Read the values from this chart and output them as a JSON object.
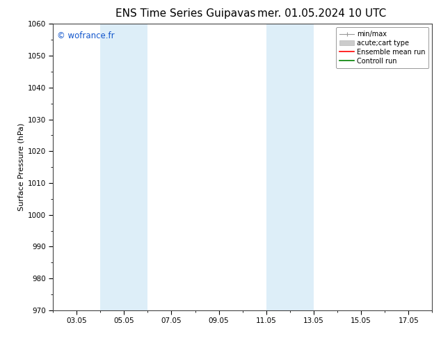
{
  "title_left": "ENS Time Series Guipavas",
  "title_right": "mer. 01.05.2024 10 UTC",
  "ylabel": "Surface Pressure (hPa)",
  "ylim": [
    970,
    1060
  ],
  "yticks": [
    970,
    980,
    990,
    1000,
    1010,
    1020,
    1030,
    1040,
    1050,
    1060
  ],
  "xtick_labels": [
    "03.05",
    "05.05",
    "07.05",
    "09.05",
    "11.05",
    "13.05",
    "15.05",
    "17.05"
  ],
  "xtick_positions": [
    2,
    4,
    6,
    8,
    10,
    12,
    14,
    16
  ],
  "xlim": [
    1,
    17
  ],
  "shaded_bands": [
    {
      "x_start": 3,
      "x_end": 5
    },
    {
      "x_start": 10,
      "x_end": 12
    }
  ],
  "shade_color": "#ddeef8",
  "background_color": "#ffffff",
  "watermark": "© wofrance.fr",
  "watermark_color": "#1155cc",
  "title_fontsize": 11,
  "axis_label_fontsize": 8,
  "tick_fontsize": 7.5,
  "legend_fontsize": 7
}
